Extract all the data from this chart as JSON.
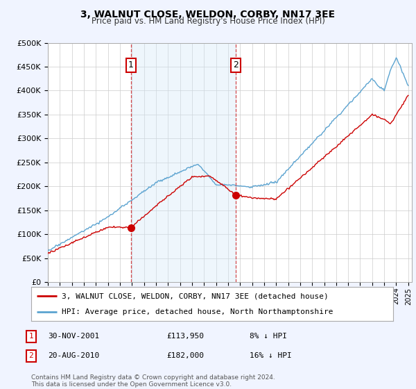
{
  "title": "3, WALNUT CLOSE, WELDON, CORBY, NN17 3EE",
  "subtitle": "Price paid vs. HM Land Registry's House Price Index (HPI)",
  "legend_line1": "3, WALNUT CLOSE, WELDON, CORBY, NN17 3EE (detached house)",
  "legend_line2": "HPI: Average price, detached house, North Northamptonshire",
  "transaction1_date": "30-NOV-2001",
  "transaction1_price": "£113,950",
  "transaction1_hpi": "8% ↓ HPI",
  "transaction1_year": 2001.92,
  "transaction1_value": 113950,
  "transaction2_date": "20-AUG-2010",
  "transaction2_price": "£182,000",
  "transaction2_hpi": "16% ↓ HPI",
  "transaction2_year": 2010.63,
  "transaction2_value": 182000,
  "hpi_color": "#5ba3d0",
  "price_color": "#cc0000",
  "vline_color": "#cc0000",
  "background_color": "#f0f4ff",
  "plot_bg_color": "#ffffff",
  "shade_color": "#d0e8f8",
  "ylim": [
    0,
    500000
  ],
  "yticks": [
    0,
    50000,
    100000,
    150000,
    200000,
    250000,
    300000,
    350000,
    400000,
    450000,
    500000
  ],
  "footer": "Contains HM Land Registry data © Crown copyright and database right 2024.\nThis data is licensed under the Open Government Licence v3.0."
}
